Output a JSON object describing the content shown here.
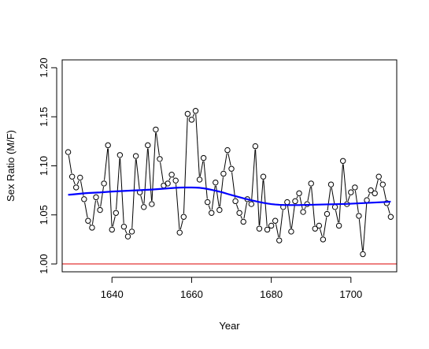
{
  "chart_data": {
    "type": "line",
    "xlabel": "Year",
    "ylabel": "Sex Ratio (M/F)",
    "xlim": [
      1627.5,
      1711.5
    ],
    "ylim": [
      0.992,
      1.208
    ],
    "xticks": [
      1640,
      1660,
      1680,
      1700
    ],
    "yticks": [
      1.0,
      1.05,
      1.1,
      1.15,
      1.2
    ],
    "xtick_labels": [
      "1640",
      "1660",
      "1680",
      "1700"
    ],
    "ytick_labels": [
      "1.00",
      "1.05",
      "1.10",
      "1.15",
      "1.20"
    ],
    "grid": false,
    "x": [
      1629,
      1630,
      1631,
      1632,
      1633,
      1634,
      1635,
      1636,
      1637,
      1638,
      1639,
      1640,
      1641,
      1642,
      1643,
      1644,
      1645,
      1646,
      1647,
      1648,
      1649,
      1650,
      1651,
      1652,
      1653,
      1654,
      1655,
      1656,
      1657,
      1658,
      1659,
      1660,
      1661,
      1662,
      1663,
      1664,
      1665,
      1666,
      1667,
      1668,
      1669,
      1670,
      1671,
      1672,
      1673,
      1674,
      1675,
      1676,
      1677,
      1678,
      1679,
      1680,
      1681,
      1682,
      1683,
      1684,
      1685,
      1686,
      1687,
      1688,
      1689,
      1690,
      1691,
      1692,
      1693,
      1694,
      1695,
      1696,
      1697,
      1698,
      1699,
      1700,
      1701,
      1702,
      1703,
      1704,
      1705,
      1706,
      1707,
      1708,
      1709,
      1710
    ],
    "series": [
      {
        "style": "points-and-lines",
        "color": "#000000",
        "values": [
          1.114,
          1.089,
          1.078,
          1.088,
          1.066,
          1.044,
          1.037,
          1.068,
          1.055,
          1.082,
          1.121,
          1.035,
          1.052,
          1.111,
          1.038,
          1.028,
          1.033,
          1.11,
          1.073,
          1.058,
          1.121,
          1.061,
          1.137,
          1.107,
          1.08,
          1.082,
          1.091,
          1.085,
          1.032,
          1.048,
          1.153,
          1.147,
          1.156,
          1.086,
          1.108,
          1.063,
          1.052,
          1.083,
          1.055,
          1.092,
          1.116,
          1.097,
          1.064,
          1.052,
          1.043,
          1.066,
          1.061,
          1.12,
          1.036,
          1.089,
          1.035,
          1.039,
          1.044,
          1.024,
          1.058,
          1.063,
          1.033,
          1.064,
          1.072,
          1.053,
          1.061,
          1.082,
          1.036,
          1.039,
          1.025,
          1.051,
          1.081,
          1.058,
          1.039,
          1.105,
          1.061,
          1.073,
          1.078,
          1.049,
          1.01,
          1.065,
          1.075,
          1.072,
          1.089,
          1.081,
          1.062,
          1.048
        ]
      },
      {
        "style": "smooth-line",
        "color": "#0000ff",
        "values": [
          1.0705,
          1.0708,
          1.0712,
          1.0716,
          1.072,
          1.0723,
          1.0725,
          1.0727,
          1.0729,
          1.0732,
          1.0735,
          1.0738,
          1.074,
          1.0742,
          1.0744,
          1.0746,
          1.0748,
          1.075,
          1.0752,
          1.0754,
          1.0756,
          1.0758,
          1.0761,
          1.0764,
          1.0767,
          1.077,
          1.0773,
          1.0776,
          1.0778,
          1.0779,
          1.0779,
          1.0779,
          1.0778,
          1.0776,
          1.0771,
          1.0764,
          1.0756,
          1.0747,
          1.0737,
          1.0726,
          1.0714,
          1.0702,
          1.0691,
          1.068,
          1.0669,
          1.0659,
          1.0649,
          1.064,
          1.0631,
          1.0623,
          1.0616,
          1.061,
          1.0606,
          1.0603,
          1.0601,
          1.06,
          1.06,
          1.06,
          1.06,
          1.0601,
          1.0602,
          1.0603,
          1.0604,
          1.0605,
          1.0606,
          1.0607,
          1.0608,
          1.0609,
          1.061,
          1.0611,
          1.0612,
          1.0614,
          1.0616,
          1.0618,
          1.062,
          1.0622,
          1.0624,
          1.0626,
          1.0628,
          1.063,
          1.0632,
          1.0635
        ]
      }
    ],
    "hline": {
      "y": 1.0,
      "color": "#dd0000"
    }
  }
}
